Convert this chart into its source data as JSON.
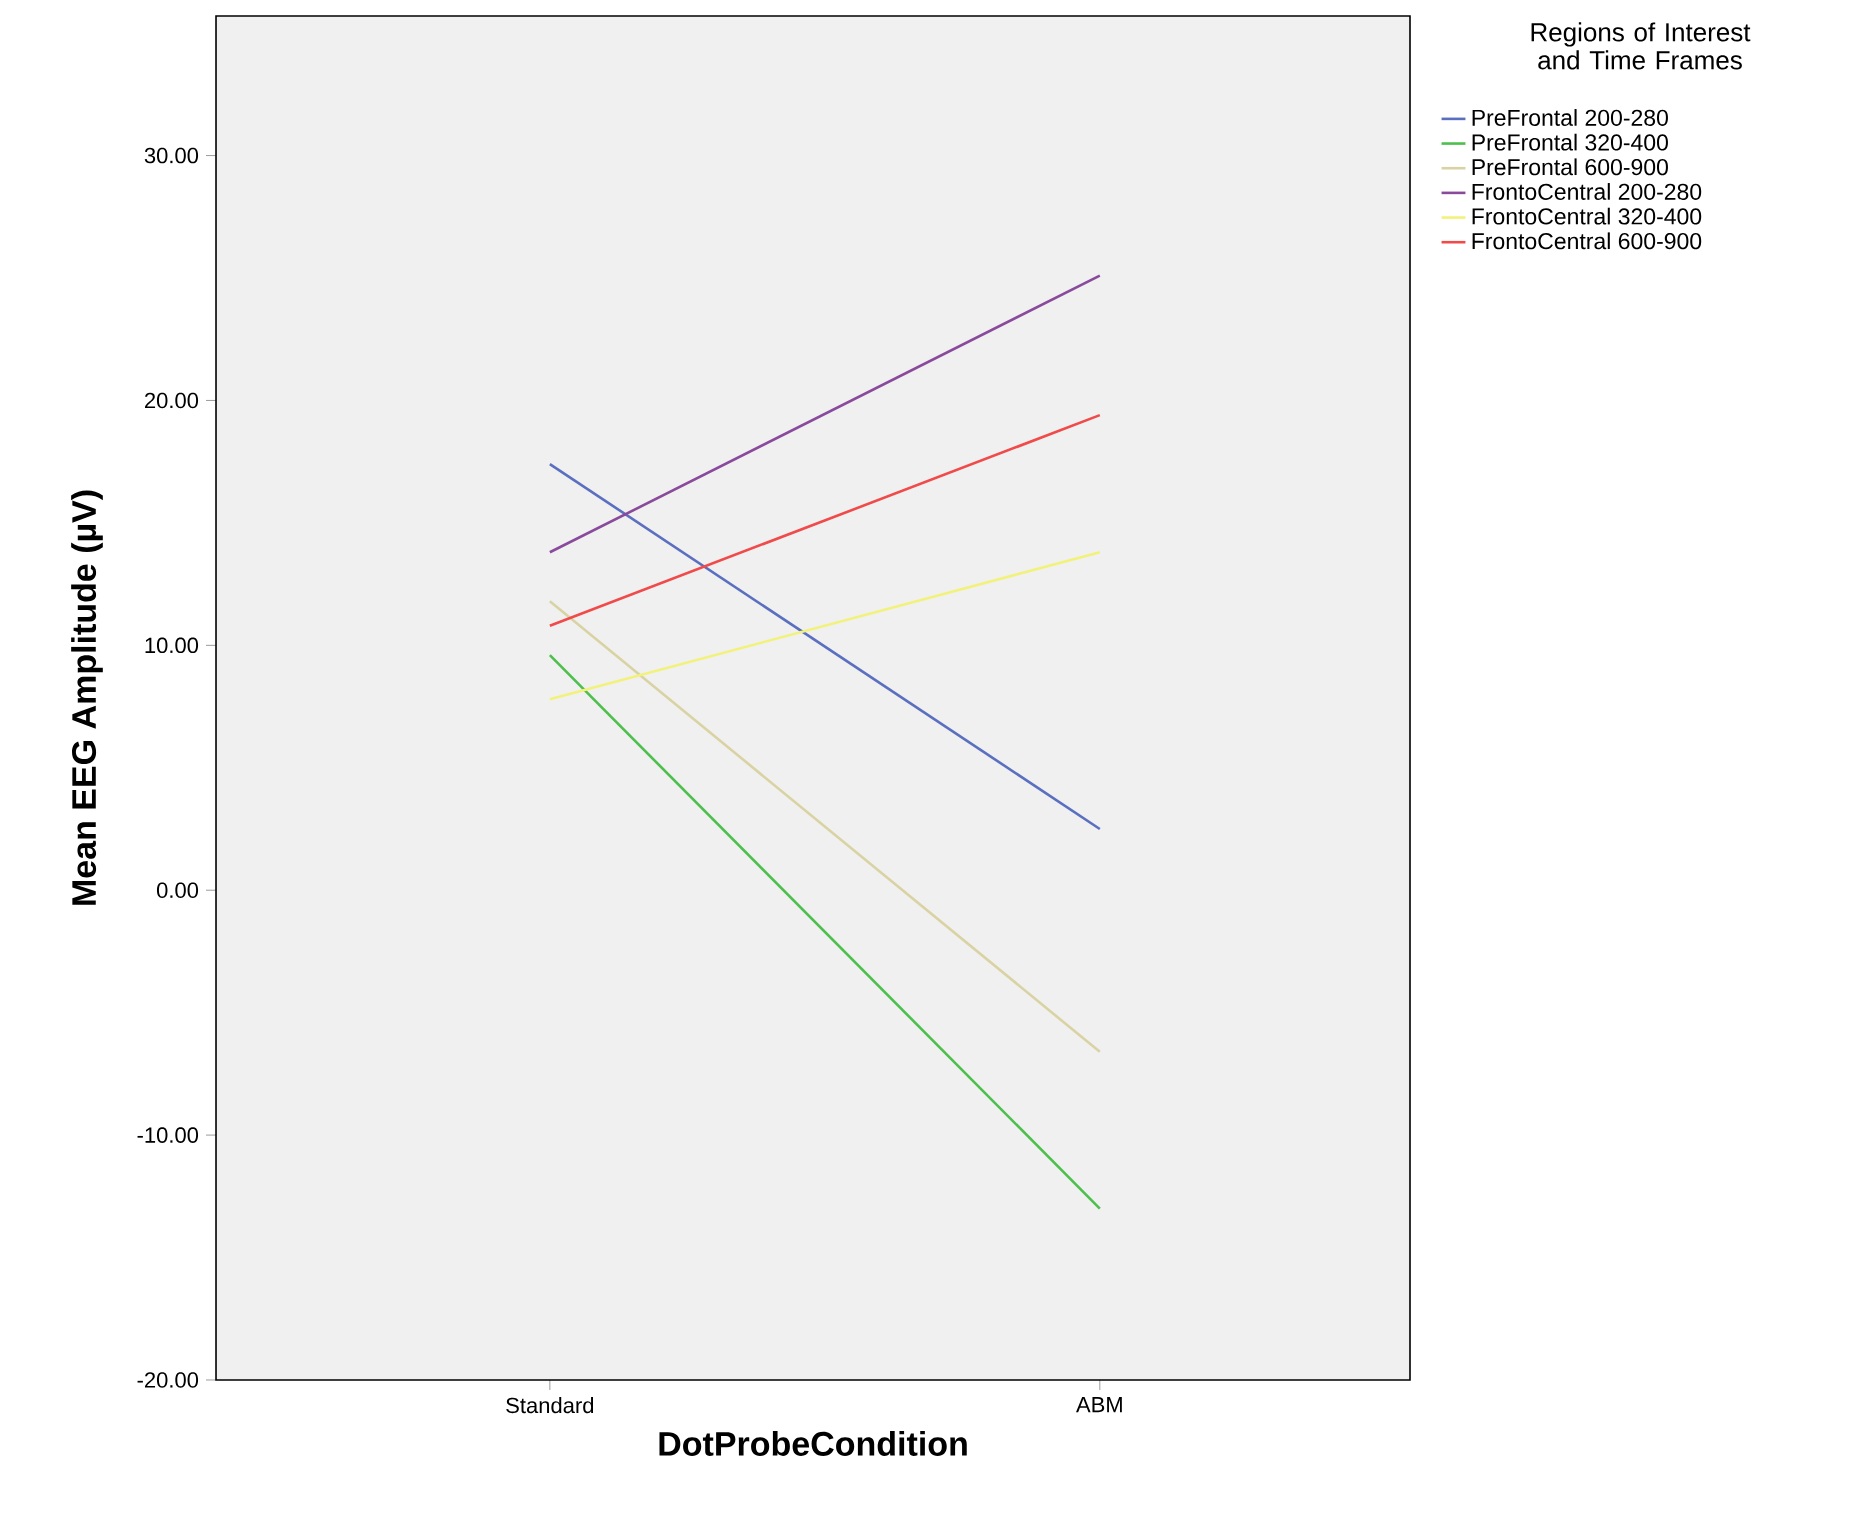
{
  "chart_data": {
    "type": "line",
    "xlabel": "DotProbeCondition",
    "ylabel": "Mean EEG Amplitude (µV)",
    "legend_title": "Regions of Interest\nand Time Frames",
    "categories": [
      "Standard",
      "ABM"
    ],
    "series": [
      {
        "name": "PreFrontal 200-280",
        "color": "#5a6fbf",
        "values": [
          17.4,
          2.5
        ]
      },
      {
        "name": "PreFrontal 320-400",
        "color": "#4cbf4c",
        "values": [
          9.6,
          -13.0
        ]
      },
      {
        "name": "PreFrontal 600-900",
        "color": "#d9d3a4",
        "values": [
          11.8,
          -6.6
        ]
      },
      {
        "name": "FrontoCentral 200-280",
        "color": "#8a4a9c",
        "values": [
          13.8,
          25.1
        ]
      },
      {
        "name": "FrontoCentral 320-400",
        "color": "#f2f27a",
        "values": [
          7.8,
          13.8
        ]
      },
      {
        "name": "FrontoCentral 600-900",
        "color": "#f04a4a",
        "values": [
          10.8,
          19.4
        ]
      }
    ],
    "ylim": [
      -20,
      35.7
    ],
    "yticks": [
      {
        "value": -20,
        "label": "-20.00"
      },
      {
        "value": -10,
        "label": "-10.00"
      },
      {
        "value": 0,
        "label": "0.00"
      },
      {
        "value": 10,
        "label": "10.00"
      },
      {
        "value": 20,
        "label": "20.00"
      },
      {
        "value": 30,
        "label": "30.00"
      }
    ],
    "grid": false,
    "legend": "top right",
    "marker": "none",
    "line_style": "solid"
  }
}
